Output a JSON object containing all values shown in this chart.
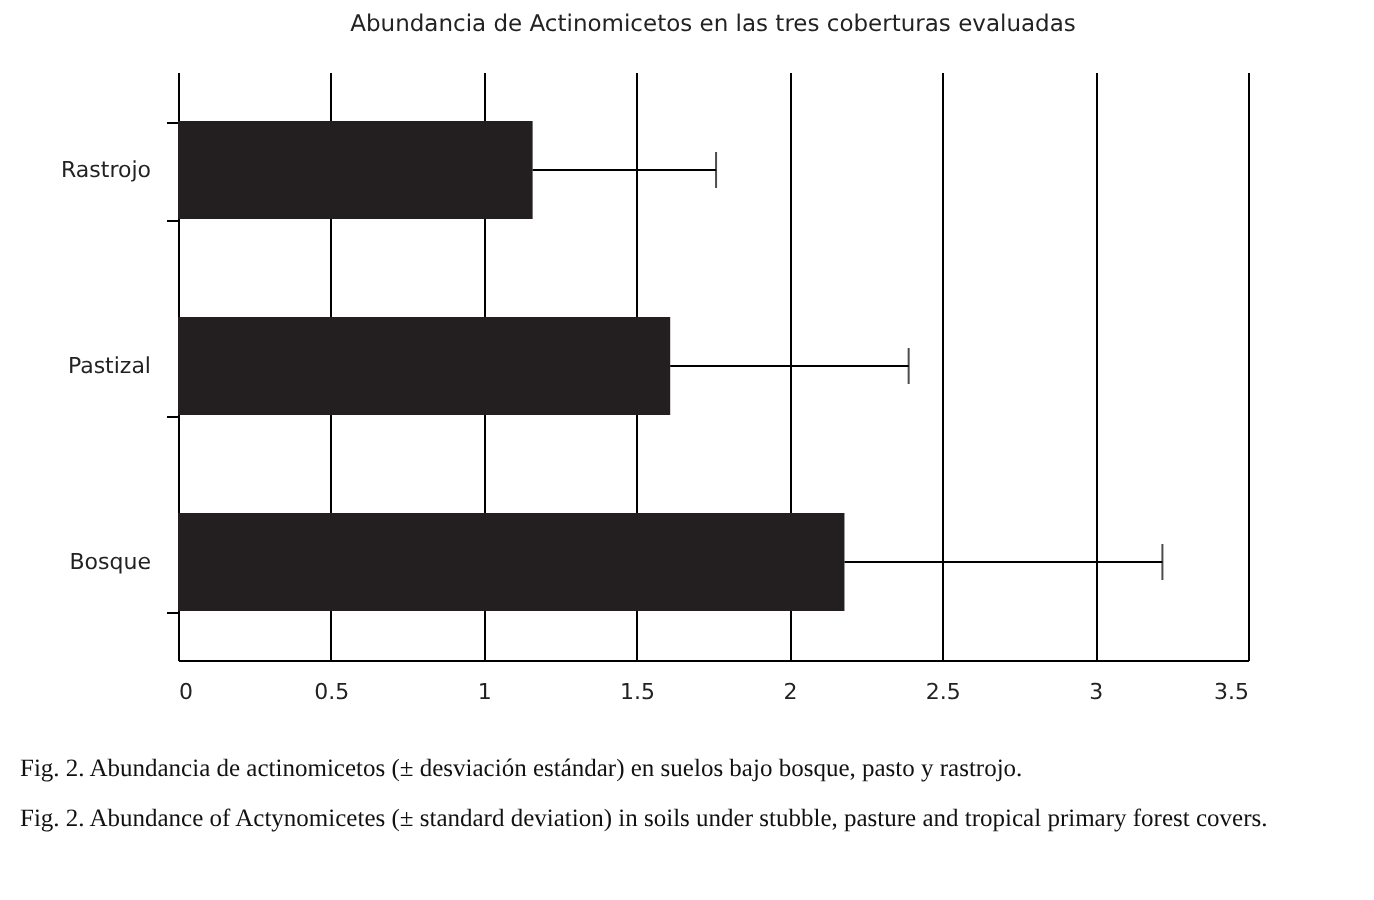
{
  "chart_data": {
    "type": "bar",
    "orientation": "horizontal",
    "title": "Abundancia de Actinomicetos en las tres coberturas evaluadas",
    "categories": [
      "Rastrojo",
      "Pastizal",
      "Bosque"
    ],
    "values": [
      1.16,
      1.61,
      2.18
    ],
    "color": "#231f20",
    "errors": [
      [
        1.16,
        1.76
      ],
      [
        1.61,
        2.39
      ],
      [
        2.18,
        3.22
      ]
    ],
    "xlim": [
      0,
      3.5
    ],
    "xticks": [
      0,
      0.5,
      1,
      1.5,
      2,
      2.5,
      3,
      3.5
    ],
    "grid": "x",
    "annotations": [
      "Fig. 2. Abundancia de actinomicetos (± desviación estándar) en suelos bajo bosque, pasto y rastrojo.",
      "Fig. 2. Abundance of Actynomicetes (± standard deviation) in soils under stubble, pasture and tropical primary forest covers."
    ]
  }
}
